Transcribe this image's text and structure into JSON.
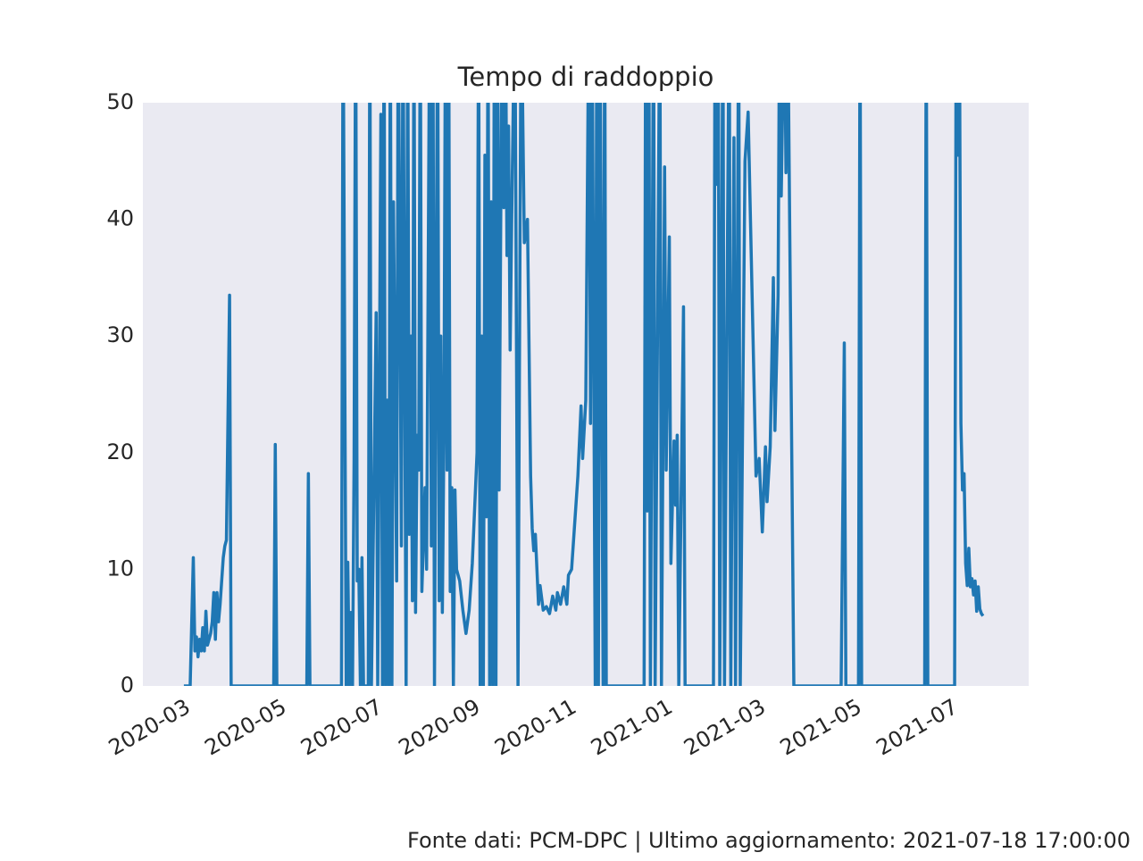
{
  "chart_data": {
    "type": "line",
    "title": "Tempo di raddoppio",
    "footer": "Fonte dati: PCM-DPC | Ultimo aggiornamento: 2021-07-18 17:00:00",
    "color": "#1f77b4",
    "grid": false,
    "xlim": [
      "2020-02-01",
      "2021-08-16"
    ],
    "ylim": [
      0,
      50
    ],
    "yticks": [
      0,
      10,
      20,
      30,
      40,
      50
    ],
    "xticks": [
      {
        "value": "2020-03-01",
        "label": "2020-03"
      },
      {
        "value": "2020-05-01",
        "label": "2020-05"
      },
      {
        "value": "2020-07-01",
        "label": "2020-07"
      },
      {
        "value": "2020-09-01",
        "label": "2020-09"
      },
      {
        "value": "2020-11-01",
        "label": "2020-11"
      },
      {
        "value": "2021-01-01",
        "label": "2021-01"
      },
      {
        "value": "2021-03-01",
        "label": "2021-03"
      },
      {
        "value": "2021-05-01",
        "label": "2021-05"
      },
      {
        "value": "2021-07-01",
        "label": "2021-07"
      }
    ],
    "x": [
      "2020-02-27",
      "2020-03-02",
      "2020-03-04",
      "2020-03-05",
      "2020-03-06",
      "2020-03-07",
      "2020-03-08",
      "2020-03-09",
      "2020-03-10",
      "2020-03-11",
      "2020-03-12",
      "2020-03-13",
      "2020-03-14",
      "2020-03-15",
      "2020-03-16",
      "2020-03-17",
      "2020-03-18",
      "2020-03-19",
      "2020-03-20",
      "2020-03-21",
      "2020-03-23",
      "2020-03-24",
      "2020-03-25",
      "2020-03-27",
      "2020-03-28",
      "2020-04-24",
      "2020-04-25",
      "2020-04-26",
      "2020-05-15",
      "2020-05-16",
      "2020-05-17",
      "2020-06-06",
      "2020-06-07",
      "2020-06-09",
      "2020-06-10",
      "2020-06-11",
      "2020-06-12",
      "2020-06-13",
      "2020-06-14",
      "2020-06-15",
      "2020-06-16",
      "2020-06-17",
      "2020-06-18",
      "2020-06-19",
      "2020-06-20",
      "2020-06-23",
      "2020-06-24",
      "2020-06-25",
      "2020-06-28",
      "2020-06-29",
      "2020-07-01",
      "2020-07-02",
      "2020-07-03",
      "2020-07-04",
      "2020-07-05",
      "2020-07-06",
      "2020-07-07",
      "2020-07-08",
      "2020-07-09",
      "2020-07-11",
      "2020-07-12",
      "2020-07-14",
      "2020-07-15",
      "2020-07-17",
      "2020-07-18",
      "2020-07-19",
      "2020-07-20",
      "2020-07-21",
      "2020-07-22",
      "2020-07-23",
      "2020-07-24",
      "2020-07-25",
      "2020-07-26",
      "2020-07-27",
      "2020-07-29",
      "2020-07-30",
      "2020-08-01",
      "2020-08-02",
      "2020-08-03",
      "2020-08-04",
      "2020-08-05",
      "2020-08-06",
      "2020-08-07",
      "2020-08-08",
      "2020-08-09",
      "2020-08-10",
      "2020-08-11",
      "2020-08-12",
      "2020-08-13",
      "2020-08-14",
      "2020-08-15",
      "2020-08-16",
      "2020-08-17",
      "2020-08-18",
      "2020-08-20",
      "2020-08-22",
      "2020-08-24",
      "2020-08-26",
      "2020-08-28",
      "2020-08-31",
      "2020-09-01",
      "2020-09-02",
      "2020-09-03",
      "2020-09-04",
      "2020-09-05",
      "2020-09-06",
      "2020-09-07",
      "2020-09-08",
      "2020-09-09",
      "2020-09-10",
      "2020-09-11",
      "2020-09-12",
      "2020-09-13",
      "2020-09-14",
      "2020-09-15",
      "2020-09-16",
      "2020-09-17",
      "2020-09-18",
      "2020-09-19",
      "2020-09-20",
      "2020-09-21",
      "2020-09-22",
      "2020-09-24",
      "2020-09-26",
      "2020-09-28",
      "2020-09-30",
      "2020-10-02",
      "2020-10-04",
      "2020-10-05",
      "2020-10-06",
      "2020-10-07",
      "2020-10-09",
      "2020-10-10",
      "2020-10-12",
      "2020-10-14",
      "2020-10-16",
      "2020-10-18",
      "2020-10-20",
      "2020-10-21",
      "2020-10-23",
      "2020-10-25",
      "2020-10-27",
      "2020-10-28",
      "2020-10-30",
      "2020-11-01",
      "2020-11-03",
      "2020-11-05",
      "2020-11-06",
      "2020-11-08",
      "2020-11-10",
      "2020-11-11",
      "2020-11-12",
      "2020-11-14",
      "2020-11-15",
      "2020-11-16",
      "2020-11-17",
      "2020-11-19",
      "2020-11-20",
      "2020-11-21",
      "2020-12-15",
      "2020-12-16",
      "2020-12-17",
      "2020-12-18",
      "2020-12-19",
      "2020-12-21",
      "2020-12-22",
      "2020-12-25",
      "2020-12-26",
      "2020-12-28",
      "2020-12-29",
      "2020-12-31",
      "2021-01-01",
      "2021-01-03",
      "2021-01-04",
      "2021-01-05",
      "2021-01-06",
      "2021-01-09",
      "2021-01-10",
      "2021-01-28",
      "2021-01-29",
      "2021-01-30",
      "2021-01-31",
      "2021-02-01",
      "2021-02-03",
      "2021-02-04",
      "2021-02-07",
      "2021-02-08",
      "2021-02-10",
      "2021-02-11",
      "2021-02-13",
      "2021-02-14",
      "2021-02-17",
      "2021-02-19",
      "2021-02-24",
      "2021-02-26",
      "2021-02-28",
      "2021-03-02",
      "2021-03-03",
      "2021-03-05",
      "2021-03-07",
      "2021-03-08",
      "2021-03-10",
      "2021-03-11",
      "2021-03-12",
      "2021-03-14",
      "2021-03-15",
      "2021-03-16",
      "2021-03-20",
      "2021-04-19",
      "2021-04-21",
      "2021-04-22",
      "2021-04-30",
      "2021-05-01",
      "2021-05-02",
      "2021-06-11",
      "2021-06-12",
      "2021-06-13",
      "2021-06-30",
      "2021-07-01",
      "2021-07-02",
      "2021-07-03",
      "2021-07-04",
      "2021-07-05",
      "2021-07-06",
      "2021-07-07",
      "2021-07-08",
      "2021-07-09",
      "2021-07-10",
      "2021-07-11",
      "2021-07-12",
      "2021-07-13",
      "2021-07-14",
      "2021-07-15",
      "2021-07-16",
      "2021-07-17",
      "2021-07-18"
    ],
    "values": [
      0,
      0,
      11,
      3,
      4.2,
      2.5,
      4,
      3,
      5,
      3,
      6.4,
      3.5,
      4,
      4.5,
      5.5,
      8,
      4,
      8,
      5.5,
      7,
      11,
      12,
      12.5,
      33.5,
      0,
      0,
      20.7,
      0,
      0,
      18.2,
      0,
      0,
      60,
      0,
      10.6,
      0,
      6.3,
      0,
      19.5,
      60,
      9,
      10,
      0,
      11,
      0,
      0,
      60,
      0,
      32,
      0,
      49,
      0,
      60,
      0,
      24.5,
      0,
      60,
      0,
      41.5,
      9,
      60,
      12,
      60,
      0,
      60,
      13,
      30,
      7.3,
      60,
      6.3,
      21.5,
      18.5,
      60,
      8.1,
      17,
      10,
      60,
      12,
      60,
      0,
      30,
      60,
      7.3,
      30,
      6.3,
      21.5,
      60,
      18.5,
      60,
      8.1,
      17,
      0,
      16.8,
      10,
      9,
      6.5,
      4.5,
      6.5,
      10.5,
      20,
      60,
      0,
      30,
      0,
      45.5,
      14.5,
      60,
      0,
      41.5,
      0,
      60,
      0,
      60,
      16.8,
      39,
      60,
      41,
      60,
      36.9,
      48,
      28.8,
      40,
      60,
      0,
      60,
      38,
      40,
      18,
      13.5,
      11.6,
      13,
      7,
      8.6,
      6.5,
      6.8,
      6.2,
      7.7,
      6.5,
      8,
      7,
      8.5,
      7,
      9.5,
      10,
      14,
      18,
      24,
      19.5,
      24.5,
      60,
      22.5,
      60,
      0,
      60,
      0,
      60,
      0,
      60,
      0,
      0,
      60,
      15,
      60,
      0,
      60,
      0,
      60,
      0,
      44.5,
      18.5,
      38.5,
      10.5,
      21,
      15.5,
      21.5,
      0,
      32.5,
      0,
      0,
      60,
      43,
      60,
      0,
      60,
      0,
      60,
      0,
      47,
      0,
      60,
      0,
      45,
      49.2,
      18,
      19.5,
      13.2,
      20.5,
      15.8,
      20.5,
      35,
      21.9,
      33.5,
      60,
      42,
      60,
      44,
      60,
      0,
      0,
      29.4,
      0,
      0,
      60,
      0,
      0,
      60,
      0,
      0,
      60,
      45.5,
      60,
      22.5,
      16.8,
      18.2,
      10.5,
      8.6,
      11.8,
      8.5,
      9.2,
      7.8,
      9,
      6.4,
      8.5,
      6.6,
      6.2,
      6
    ]
  }
}
